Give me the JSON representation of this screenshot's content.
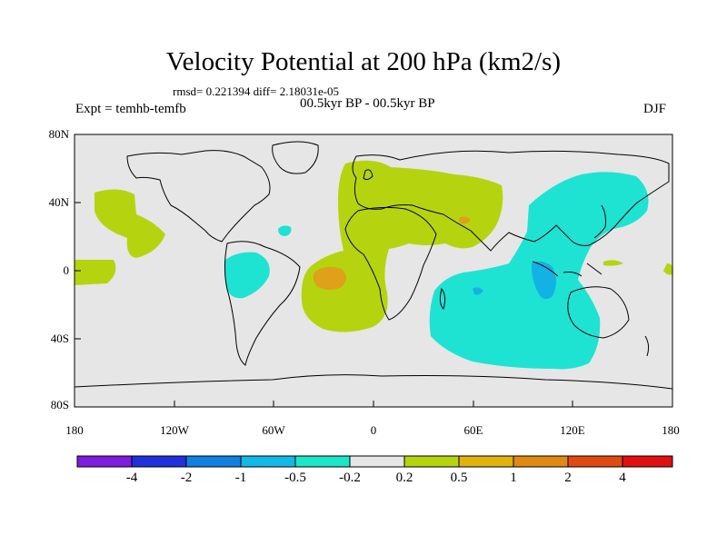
{
  "title": "Velocity Potential at 200 hPa (km2/s)",
  "stats": "rmsd= 0.221394 diff= 2.18031e-05",
  "experiment": "Expt = temhb-temfb",
  "period": "00.5kyr BP - 00.5kyr BP",
  "season": "DJF",
  "colors": {
    "background": "#e6e6e6",
    "positive_weak": "#b5d40f",
    "negative_weak": "#1ee3d2",
    "positive_mid": "#dfa01a",
    "negative_mid": "#12b2e4",
    "coast": "#000000"
  },
  "y_labels": [
    "80N",
    "40N",
    "0",
    "40S",
    "80S"
  ],
  "x_labels": [
    "180",
    "120W",
    "60W",
    "0",
    "60E",
    "120E",
    "180"
  ],
  "colorbar": {
    "colors": [
      "#7d1de0",
      "#2030dc",
      "#1180e0",
      "#12b8e6",
      "#1de5c8",
      "#e6e6e6",
      "#b5d40f",
      "#e0b30f",
      "#e08a14",
      "#e04a10",
      "#e01010"
    ],
    "labels": [
      "-4",
      "-2",
      "-1",
      "-0.5",
      "-0.2",
      "0.2",
      "0.5",
      "1",
      "2",
      "4"
    ]
  }
}
